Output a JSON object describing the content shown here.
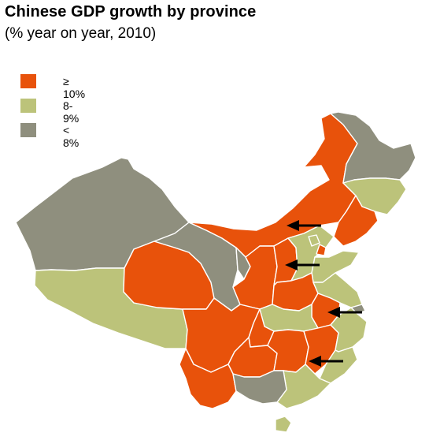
{
  "title": "Chinese GDP growth by province",
  "subtitle": "(% year on year, 2010)",
  "colors": {
    "high": "#e8520b",
    "mid": "#bcc37a",
    "low": "#8f8f7e",
    "arrow": "#000000"
  },
  "legend": [
    {
      "label": "≥ 10%",
      "color": "#e8520b",
      "category": "high"
    },
    {
      "label": "8-9%",
      "color": "#bcc37a",
      "category": "mid"
    },
    {
      "label": "< 8%",
      "color": "#8f8f7e",
      "category": "low"
    }
  ],
  "provinces": [
    {
      "id": "xinjiang",
      "category": "low"
    },
    {
      "id": "tibet",
      "category": "mid"
    },
    {
      "id": "qinghai",
      "category": "high"
    },
    {
      "id": "gansu",
      "category": "low"
    },
    {
      "id": "inner-mongolia",
      "category": "high"
    },
    {
      "id": "heilongjiang",
      "category": "low"
    },
    {
      "id": "jilin",
      "category": "mid"
    },
    {
      "id": "liaoning",
      "category": "high"
    },
    {
      "id": "ningxia",
      "category": "low"
    },
    {
      "id": "shaanxi",
      "category": "high"
    },
    {
      "id": "shanxi",
      "category": "high"
    },
    {
      "id": "hebei",
      "category": "mid"
    },
    {
      "id": "beijing",
      "category": "mid"
    },
    {
      "id": "tianjin",
      "category": "high"
    },
    {
      "id": "shandong",
      "category": "mid"
    },
    {
      "id": "henan",
      "category": "high"
    },
    {
      "id": "jiangsu",
      "category": "mid"
    },
    {
      "id": "shanghai",
      "category": "low"
    },
    {
      "id": "anhui",
      "category": "high"
    },
    {
      "id": "hubei",
      "category": "mid"
    },
    {
      "id": "sichuan",
      "category": "high"
    },
    {
      "id": "chongqing",
      "category": "high"
    },
    {
      "id": "guizhou",
      "category": "high"
    },
    {
      "id": "yunnan",
      "category": "high"
    },
    {
      "id": "hunan",
      "category": "high"
    },
    {
      "id": "jiangxi",
      "category": "high"
    },
    {
      "id": "zhejiang",
      "category": "mid"
    },
    {
      "id": "fujian",
      "category": "mid"
    },
    {
      "id": "guangdong",
      "category": "mid"
    },
    {
      "id": "guangxi",
      "category": "low"
    },
    {
      "id": "hainan",
      "category": "mid"
    }
  ],
  "arrows": [
    {
      "target": "inner-mongolia"
    },
    {
      "target": "shanxi"
    },
    {
      "target": "anhui"
    },
    {
      "target": "jiangxi"
    }
  ]
}
